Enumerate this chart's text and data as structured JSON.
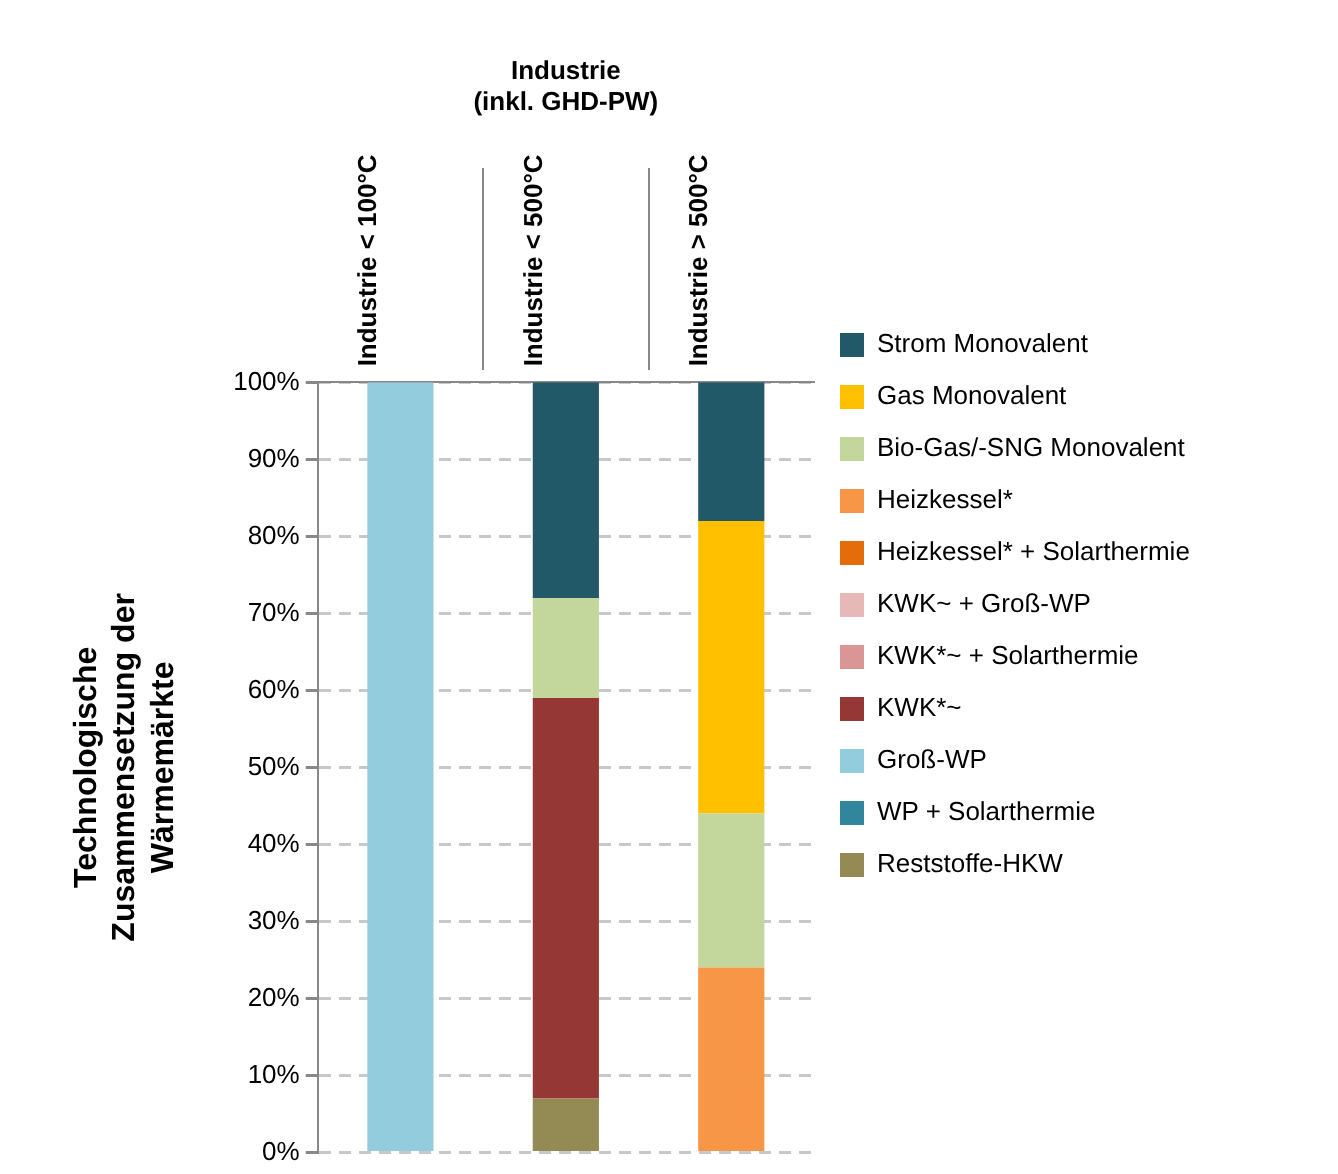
{
  "chart_data": {
    "type": "bar",
    "stacked": true,
    "title": "Industrie (inkl. GHD-PW)",
    "ylabel": "Technologische Zusammensetzung der Wärmemärkte",
    "categories": [
      "Industrie < 100°C",
      "Industrie < 500°C",
      "Industrie > 500°C"
    ],
    "series": [
      {
        "name": "Reststoffe-HKW",
        "color": "#948a54",
        "values": [
          0,
          7,
          0
        ]
      },
      {
        "name": "WP + Solarthermie",
        "color": "#31859c",
        "values": [
          0,
          0,
          0
        ]
      },
      {
        "name": "Groß-WP",
        "color": "#93cddd",
        "values": [
          100,
          0,
          0
        ]
      },
      {
        "name": "KWK*~",
        "color": "#953735",
        "values": [
          0,
          52,
          0
        ]
      },
      {
        "name": "KWK*~ + Solarthermie",
        "color": "#d99694",
        "values": [
          0,
          0,
          0
        ]
      },
      {
        "name": "KWK~ + Groß-WP",
        "color": "#e6b9b8",
        "values": [
          0,
          0,
          0
        ]
      },
      {
        "name": "Heizkessel* + Solarthermie",
        "color": "#e46c0a",
        "values": [
          0,
          0,
          0
        ]
      },
      {
        "name": "Heizkessel*",
        "color": "#f79646",
        "values": [
          0,
          0,
          24
        ]
      },
      {
        "name": "Bio-Gas/-SNG Monovalent",
        "color": "#c3d69b",
        "values": [
          0,
          13,
          20
        ]
      },
      {
        "name": "Gas Monovalent",
        "color": "#ffc000",
        "values": [
          0,
          0,
          38
        ]
      },
      {
        "name": "Strom Monovalent",
        "color": "#215968",
        "values": [
          0,
          28,
          18
        ]
      }
    ],
    "ylim": [
      0,
      100
    ],
    "yticks": [
      {
        "value": 0,
        "label": "0%"
      },
      {
        "value": 10,
        "label": "10%"
      },
      {
        "value": 20,
        "label": "20%"
      },
      {
        "value": 30,
        "label": "30%"
      },
      {
        "value": 40,
        "label": "40%"
      },
      {
        "value": 50,
        "label": "50%"
      },
      {
        "value": 60,
        "label": "60%"
      },
      {
        "value": 70,
        "label": "70%"
      },
      {
        "value": 80,
        "label": "80%"
      },
      {
        "value": 90,
        "label": "90%"
      },
      {
        "value": 100,
        "label": "100%"
      }
    ],
    "grid": "y",
    "legend": "right"
  }
}
